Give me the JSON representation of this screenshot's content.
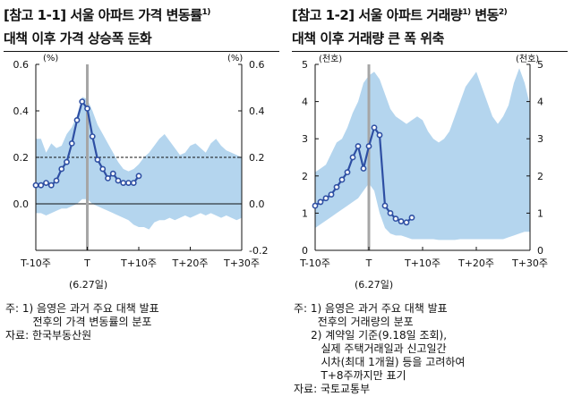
{
  "left_panel": {
    "title_line1": "[참고 1-1] 서울 아파트 가격 변동률",
    "title_sup": "1)",
    "title_line2": "대책 이후 가격 상승폭 둔화",
    "unit_left": "(%)",
    "unit_right": "(%)",
    "event_label": "(6.27일)",
    "notes": [
      "주: 1) 음영은 과거 주요 대책 발표",
      "        전후의 가격 변동률의 분포",
      "자료: 한국부동산원"
    ]
  },
  "right_panel": {
    "title_line1": "[참고 1-2] 서울 아파트 거래량",
    "title_sup1": "1)",
    "title_line1b": " 변동",
    "title_sup2": "2)",
    "title_line2": "대책 이후 거래량 큰 폭 위축",
    "unit_left": "(천호)",
    "unit_right": "(천호)",
    "event_label": "(6.27일)",
    "notes": [
      "주: 1) 음영은 과거 주요 대책 발표",
      "       전후의 거래량의 분포",
      "     2) 계약일 기준(9.18일 조회),",
      "        실제 주택거래일과 신고일간",
      "        시차(최대 1개월) 등을 고려하여",
      "        T+8주까지만 표기",
      "자료: 국토교통부"
    ]
  },
  "colors": {
    "band": "#b4d5ee",
    "line": "#2e4fa3",
    "event_line": "#a6a6a6",
    "axis": "#111111"
  },
  "chart_data": [
    {
      "type": "line",
      "x": [
        -10,
        -9,
        -8,
        -7,
        -6,
        -5,
        -4,
        -3,
        -2,
        -1,
        0,
        1,
        2,
        3,
        4,
        5,
        6,
        7,
        8,
        9,
        10
      ],
      "x_tick_labels": [
        {
          "x": -10,
          "label": "T-10주"
        },
        {
          "x": 0,
          "label": "T"
        },
        {
          "x": 10,
          "label": "T+10주"
        },
        {
          "x": 20,
          "label": "T+20주"
        },
        {
          "x": 30,
          "label": "T+30주"
        }
      ],
      "xlim": [
        -10,
        30
      ],
      "ylim": [
        -0.2,
        0.6
      ],
      "y_ticks": [
        -0.2,
        0.0,
        0.2,
        0.4,
        0.6
      ],
      "y_tick_labels_left": [
        "",
        "0.0",
        "0.2",
        "0.4",
        "0.6"
      ],
      "y_tick_labels_right": [
        "-0.2",
        "0.0",
        "0.2",
        "0.4",
        "0.6"
      ],
      "series": [
        {
          "values": [
            0.08,
            0.08,
            0.09,
            0.08,
            0.1,
            0.15,
            0.18,
            0.26,
            0.36,
            0.44,
            0.41,
            0.29,
            0.19,
            0.15,
            0.11,
            0.13,
            0.1,
            0.09,
            0.09,
            0.09,
            0.12
          ]
        }
      ],
      "band": {
        "x": [
          -10,
          -9,
          -8,
          -7,
          -6,
          -5,
          -4,
          -3,
          -2,
          -1,
          0,
          1,
          2,
          3,
          4,
          5,
          6,
          7,
          8,
          9,
          10,
          11,
          12,
          13,
          14,
          15,
          16,
          17,
          18,
          19,
          20,
          21,
          22,
          23,
          24,
          25,
          26,
          27,
          28,
          29,
          30
        ],
        "upper": [
          0.28,
          0.28,
          0.22,
          0.26,
          0.24,
          0.25,
          0.3,
          0.33,
          0.38,
          0.46,
          0.45,
          0.4,
          0.34,
          0.3,
          0.26,
          0.22,
          0.18,
          0.15,
          0.14,
          0.15,
          0.17,
          0.2,
          0.22,
          0.25,
          0.28,
          0.3,
          0.27,
          0.24,
          0.21,
          0.22,
          0.25,
          0.26,
          0.24,
          0.22,
          0.26,
          0.28,
          0.25,
          0.23,
          0.22,
          0.21,
          0.2
        ],
        "lower": [
          -0.04,
          -0.04,
          -0.05,
          -0.04,
          -0.03,
          -0.02,
          -0.02,
          -0.01,
          0.0,
          0.02,
          0.02,
          0.0,
          -0.01,
          -0.02,
          -0.03,
          -0.04,
          -0.05,
          -0.06,
          -0.07,
          -0.09,
          -0.1,
          -0.1,
          -0.11,
          -0.08,
          -0.07,
          -0.07,
          -0.06,
          -0.07,
          -0.06,
          -0.05,
          -0.06,
          -0.05,
          -0.04,
          -0.05,
          -0.04,
          -0.05,
          -0.06,
          -0.05,
          -0.06,
          -0.07,
          -0.06
        ]
      },
      "reference_lines": [
        {
          "y": 0.2,
          "style": "dashed"
        },
        {
          "y": 0.0,
          "style": "solid"
        }
      ],
      "event_x": 0
    },
    {
      "type": "line",
      "x": [
        -10,
        -9,
        -8,
        -7,
        -6,
        -5,
        -4,
        -3,
        -2,
        -1,
        0,
        1,
        2,
        3,
        4,
        5,
        6,
        7,
        8
      ],
      "x_tick_labels": [
        {
          "x": -10,
          "label": "T-10주"
        },
        {
          "x": 0,
          "label": "T"
        },
        {
          "x": 10,
          "label": "T+10주"
        },
        {
          "x": 20,
          "label": "T+20주"
        },
        {
          "x": 30,
          "label": "T+30주"
        }
      ],
      "xlim": [
        -10,
        30
      ],
      "ylim": [
        0,
        5
      ],
      "y_ticks": [
        0,
        1,
        2,
        3,
        4,
        5
      ],
      "y_tick_labels_left": [
        "0",
        "1",
        "2",
        "3",
        "4",
        "5"
      ],
      "y_tick_labels_right": [
        "0",
        "1",
        "2",
        "3",
        "4",
        "5"
      ],
      "series": [
        {
          "values": [
            1.2,
            1.3,
            1.4,
            1.5,
            1.7,
            1.9,
            2.1,
            2.5,
            2.8,
            2.2,
            2.8,
            3.3,
            3.1,
            1.2,
            1.0,
            0.85,
            0.78,
            0.75,
            0.88
          ]
        }
      ],
      "band": {
        "x": [
          -10,
          -9,
          -8,
          -7,
          -6,
          -5,
          -4,
          -3,
          -2,
          -1,
          0,
          1,
          2,
          3,
          4,
          5,
          6,
          7,
          8,
          9,
          10,
          11,
          12,
          13,
          14,
          15,
          16,
          17,
          18,
          19,
          20,
          21,
          22,
          23,
          24,
          25,
          26,
          27,
          28,
          29,
          30
        ],
        "upper": [
          2.1,
          2.2,
          2.3,
          2.6,
          2.9,
          3.0,
          3.3,
          3.7,
          4.0,
          4.5,
          4.7,
          4.8,
          4.6,
          4.2,
          3.8,
          3.6,
          3.5,
          3.4,
          3.5,
          3.6,
          3.5,
          3.2,
          3.0,
          2.9,
          3.0,
          3.2,
          3.6,
          4.0,
          4.4,
          4.6,
          4.8,
          4.4,
          4.0,
          3.6,
          3.4,
          3.6,
          3.9,
          4.5,
          4.9,
          4.5,
          3.9
        ],
        "lower": [
          0.6,
          0.7,
          0.8,
          0.9,
          1.0,
          1.1,
          1.2,
          1.3,
          1.4,
          1.6,
          1.8,
          1.6,
          1.0,
          0.6,
          0.45,
          0.4,
          0.4,
          0.35,
          0.3,
          0.3,
          0.3,
          0.3,
          0.3,
          0.28,
          0.28,
          0.28,
          0.28,
          0.3,
          0.3,
          0.3,
          0.3,
          0.3,
          0.3,
          0.3,
          0.3,
          0.3,
          0.35,
          0.4,
          0.45,
          0.5,
          0.5
        ]
      },
      "event_x": 0
    }
  ]
}
